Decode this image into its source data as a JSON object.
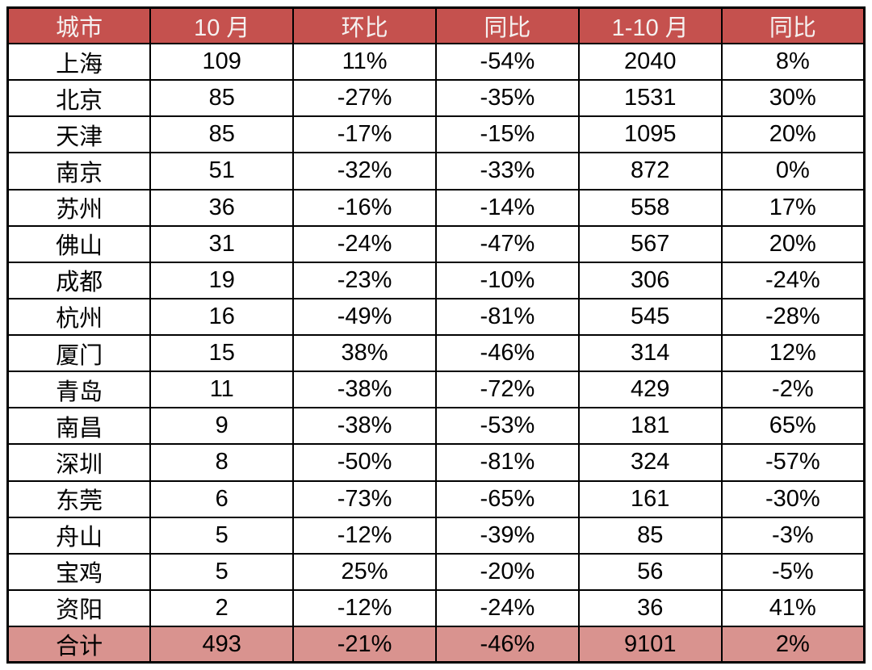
{
  "chart_data": {
    "type": "table",
    "columns": [
      "城市",
      "10 月",
      "环比",
      "同比",
      "1-10 月",
      "同比"
    ],
    "rows": [
      [
        "上海",
        "109",
        "11%",
        "-54%",
        "2040",
        "8%"
      ],
      [
        "北京",
        "85",
        "-27%",
        "-35%",
        "1531",
        "30%"
      ],
      [
        "天津",
        "85",
        "-17%",
        "-15%",
        "1095",
        "20%"
      ],
      [
        "南京",
        "51",
        "-32%",
        "-33%",
        "872",
        "0%"
      ],
      [
        "苏州",
        "36",
        "-16%",
        "-14%",
        "558",
        "17%"
      ],
      [
        "佛山",
        "31",
        "-24%",
        "-47%",
        "567",
        "20%"
      ],
      [
        "成都",
        "19",
        "-23%",
        "-10%",
        "306",
        "-24%"
      ],
      [
        "杭州",
        "16",
        "-49%",
        "-81%",
        "545",
        "-28%"
      ],
      [
        "厦门",
        "15",
        "38%",
        "-46%",
        "314",
        "12%"
      ],
      [
        "青岛",
        "11",
        "-38%",
        "-72%",
        "429",
        "-2%"
      ],
      [
        "南昌",
        "9",
        "-38%",
        "-53%",
        "181",
        "65%"
      ],
      [
        "深圳",
        "8",
        "-50%",
        "-81%",
        "324",
        "-57%"
      ],
      [
        "东莞",
        "6",
        "-73%",
        "-65%",
        "161",
        "-30%"
      ],
      [
        "舟山",
        "5",
        "-12%",
        "-39%",
        "85",
        "-3%"
      ],
      [
        "宝鸡",
        "5",
        "25%",
        "-20%",
        "56",
        "-5%"
      ],
      [
        "资阳",
        "2",
        "-12%",
        "-24%",
        "36",
        "41%"
      ]
    ],
    "footer": [
      "合计",
      "493",
      "-21%",
      "-46%",
      "9101",
      "2%"
    ],
    "colors": {
      "header_bg": "#C5514E",
      "header_text": "#F5F1F0",
      "footer_bg": "#D9938F",
      "body_text": "#000000",
      "border": "#000000"
    },
    "layout_hints": {
      "grid": "on",
      "header_position": "top",
      "totals_position": "bottom"
    }
  }
}
